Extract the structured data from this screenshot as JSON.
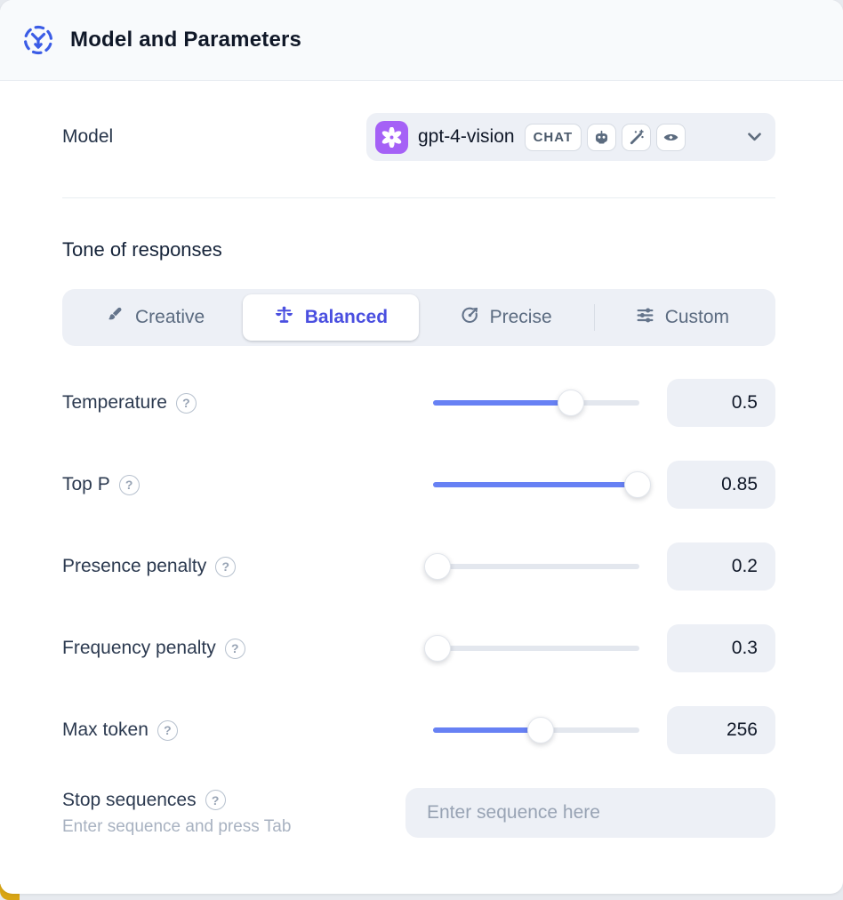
{
  "header": {
    "title": "Model and Parameters",
    "icon": "model-icon"
  },
  "model_row": {
    "label": "Model",
    "selected_model": "gpt-4-vision",
    "type_badge": "CHAT",
    "provider_icon": "openai-logo",
    "capability_icons": [
      "robot-icon",
      "magic-wand-icon",
      "vision-eye-icon"
    ],
    "provider_color": "#a561f6"
  },
  "tone": {
    "title": "Tone of responses",
    "selected_color": "#4a4fe0",
    "options": [
      {
        "label": "Creative",
        "icon": "paintbrush-icon",
        "selected": false
      },
      {
        "label": "Balanced",
        "icon": "balance-scale-icon",
        "selected": true
      },
      {
        "label": "Precise",
        "icon": "target-icon",
        "selected": false
      },
      {
        "label": "Custom",
        "icon": "sliders-icon",
        "selected": false
      }
    ]
  },
  "parameters": [
    {
      "label": "Temperature",
      "value": "0.5",
      "fill_pct": 67
    },
    {
      "label": "Top P",
      "value": "0.85",
      "fill_pct": 99
    },
    {
      "label": "Presence penalty",
      "value": "0.2",
      "fill_pct": 2
    },
    {
      "label": "Frequency penalty",
      "value": "0.3",
      "fill_pct": 2
    },
    {
      "label": "Max token",
      "value": "256",
      "fill_pct": 52
    }
  ],
  "stop_sequences": {
    "label": "Stop sequences",
    "hint": "Enter sequence and press Tab",
    "placeholder": "Enter sequence here"
  },
  "misc": {
    "help_glyph": "?",
    "slider_color": "#6781f4",
    "accent_corner_color": "#d9a514",
    "header_icon_color": "#3b5ce6"
  }
}
